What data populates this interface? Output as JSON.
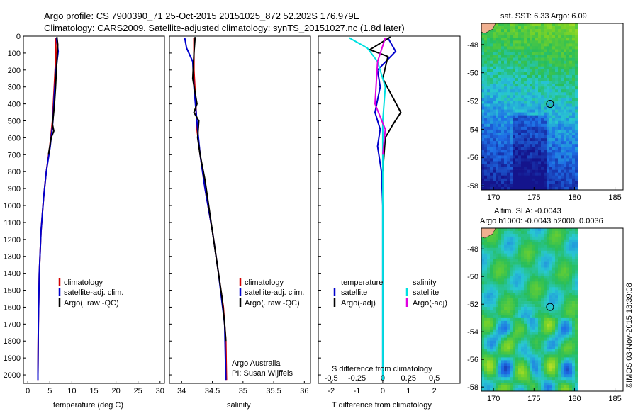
{
  "header": {
    "line1": "Argo profile: CS 7900390_71 25-Oct-2015 20151025_872 52.202S 176.979E",
    "line2": "Climatology: CARS2009. Satellite-adjusted climatology: synTS_20151027.nc (1.8d later)"
  },
  "colors": {
    "climatology": "#d40000",
    "satellite": "#0000cc",
    "argo": "#000000",
    "sat_salinity": "#00e0e0",
    "argo_salinity": "#e000e0"
  },
  "chart_data": [
    {
      "type": "line",
      "name": "temperature-panel",
      "xlabel": "temperature (deg C)",
      "ylabel": "",
      "xlim": [
        -1,
        31
      ],
      "ylim": [
        2050,
        0
      ],
      "xticks": [
        "0",
        "5",
        "10",
        "15",
        "20",
        "25",
        "30"
      ],
      "yticks": [
        "0",
        "100",
        "200",
        "300",
        "400",
        "500",
        "600",
        "700",
        "800",
        "900",
        "1000",
        "1100",
        "1200",
        "1300",
        "1400",
        "1500",
        "1600",
        "1700",
        "1800",
        "1900",
        "2000"
      ],
      "legend": [
        "climatology",
        "satellite-adj. clim.",
        "Argo(..raw -QC)"
      ],
      "series": [
        {
          "name": "climatology",
          "points": [
            [
              6.3,
              10
            ],
            [
              6.4,
              100
            ],
            [
              6.2,
              200
            ],
            [
              5.9,
              350
            ],
            [
              5.6,
              500
            ],
            [
              5.0,
              650
            ],
            [
              4.2,
              800
            ],
            [
              3.6,
              950
            ],
            [
              3.0,
              1150
            ],
            [
              2.6,
              1400
            ],
            [
              2.4,
              1700
            ],
            [
              2.3,
              2000
            ],
            [
              2.3,
              2030
            ]
          ]
        },
        {
          "name": "satellite-adj. clim.",
          "points": [
            [
              6.5,
              10
            ],
            [
              6.9,
              90
            ],
            [
              6.4,
              200
            ],
            [
              6.0,
              350
            ],
            [
              5.7,
              500
            ],
            [
              5.1,
              650
            ],
            [
              4.2,
              800
            ],
            [
              3.6,
              950
            ],
            [
              3.0,
              1150
            ],
            [
              2.6,
              1400
            ],
            [
              2.4,
              1700
            ],
            [
              2.3,
              2000
            ],
            [
              2.3,
              2030
            ]
          ]
        },
        {
          "name": "Argo(..raw -QC)",
          "points": [
            [
              6.6,
              5
            ],
            [
              6.8,
              50
            ],
            [
              6.7,
              100
            ],
            [
              6.5,
              200
            ],
            [
              6.3,
              300
            ],
            [
              6.0,
              420
            ],
            [
              5.6,
              520
            ],
            [
              5.9,
              560
            ],
            [
              5.3,
              600
            ],
            [
              4.7,
              700
            ]
          ]
        }
      ]
    },
    {
      "type": "line",
      "name": "salinity-panel",
      "xlabel": "salinity",
      "xlim": [
        33.8,
        36.1
      ],
      "ylim": [
        2050,
        0
      ],
      "xticks": [
        "34",
        "34.5",
        "35",
        "35.5",
        "36"
      ],
      "legend": [
        "climatology",
        "satellite-adj. clim.",
        "Argo(..raw -QC)"
      ],
      "annotation": [
        "Argo Australia",
        "PI: Susan Wijffels"
      ],
      "series": [
        {
          "name": "climatology",
          "points": [
            [
              34.2,
              10
            ],
            [
              34.2,
              200
            ],
            [
              34.23,
              400
            ],
            [
              34.25,
              550
            ],
            [
              34.3,
              700
            ],
            [
              34.38,
              900
            ],
            [
              34.5,
              1150
            ],
            [
              34.6,
              1400
            ],
            [
              34.68,
              1600
            ],
            [
              34.72,
              1800
            ],
            [
              34.73,
              2030
            ]
          ]
        },
        {
          "name": "satellite-adj. clim.",
          "points": [
            [
              34.05,
              10
            ],
            [
              34.08,
              70
            ],
            [
              34.18,
              150
            ],
            [
              34.2,
              300
            ],
            [
              34.26,
              550
            ],
            [
              34.3,
              700
            ],
            [
              34.38,
              900
            ],
            [
              34.5,
              1150
            ],
            [
              34.6,
              1400
            ],
            [
              34.7,
              1700
            ],
            [
              34.72,
              2030
            ]
          ]
        },
        {
          "name": "Argo(..raw -QC)",
          "points": [
            [
              34.22,
              5
            ],
            [
              34.2,
              100
            ],
            [
              34.18,
              250
            ],
            [
              34.25,
              400
            ],
            [
              34.2,
              450
            ],
            [
              34.28,
              500
            ],
            [
              34.26,
              600
            ],
            [
              34.3,
              700
            ],
            [
              34.38,
              850
            ],
            [
              34.48,
              1100
            ],
            [
              34.58,
              1350
            ],
            [
              34.66,
              1550
            ],
            [
              34.7,
              1700
            ],
            [
              34.72,
              1800
            ]
          ]
        }
      ]
    },
    {
      "type": "line",
      "name": "difference-panel",
      "xlabel": "T difference from climatology",
      "xlabel_top": "S difference from climatology",
      "xlim": [
        -2.5,
        3
      ],
      "ylim": [
        2050,
        0
      ],
      "xticks": [
        "-2",
        "-1",
        "0",
        "1",
        "2"
      ],
      "xticks_top": [
        "-0.5",
        "-0.25",
        "0",
        "0.25",
        "0.5"
      ],
      "legend_left_title": "temperature",
      "legend_right_title": "salinity",
      "legend": [
        "satellite",
        "Argo(-adj)",
        "satellite",
        "Argo(-adj)"
      ],
      "series": [
        {
          "name": "temperature satellite",
          "points": [
            [
              0.2,
              10
            ],
            [
              0.5,
              90
            ],
            [
              -0.2,
              200
            ],
            [
              -0.1,
              300
            ],
            [
              -0.3,
              450
            ],
            [
              -0.1,
              550
            ],
            [
              -0.2,
              650
            ],
            [
              -0.05,
              800
            ],
            [
              0,
              1000
            ],
            [
              0,
              2030
            ]
          ]
        },
        {
          "name": "temperature Argo(-adj)",
          "points": [
            [
              0.3,
              5
            ],
            [
              -0.5,
              80
            ],
            [
              0.2,
              120
            ],
            [
              0,
              250
            ],
            [
              0.7,
              450
            ],
            [
              0.4,
              520
            ],
            [
              0.1,
              600
            ],
            [
              0,
              800
            ]
          ]
        },
        {
          "name": "salinity satellite",
          "points": [
            [
              -1.3,
              10
            ],
            [
              -0.6,
              70
            ],
            [
              -0.2,
              150
            ],
            [
              0.1,
              300
            ],
            [
              0,
              500
            ],
            [
              0,
              1000
            ],
            [
              0,
              2030
            ]
          ]
        },
        {
          "name": "salinity Argo(-adj)",
          "points": [
            [
              0.1,
              10
            ],
            [
              -0.2,
              150
            ],
            [
              -0.3,
              400
            ],
            [
              0.1,
              550
            ],
            [
              0,
              700
            ]
          ]
        }
      ]
    },
    {
      "type": "heatmap",
      "name": "sst-map",
      "title": "sat. SST: 6.33 Argo: 6.09",
      "xlim": [
        168.5,
        186
      ],
      "ylim": [
        -58.3,
        -46.5
      ],
      "xticks": [
        "170",
        "175",
        "180",
        "185"
      ],
      "yticks": [
        "-48",
        "-50",
        "-52",
        "-54",
        "-56",
        "-58"
      ],
      "marker": [
        176.979,
        -52.202
      ]
    },
    {
      "type": "heatmap",
      "name": "sla-map",
      "title_line1": "Altim. SLA: -0.0043",
      "title_line2": "Argo h1000: -0.0043 h2000: 0.0036",
      "xlim": [
        168.5,
        186
      ],
      "ylim": [
        -58.3,
        -46.5
      ],
      "xticks": [
        "170",
        "175",
        "180",
        "185"
      ],
      "yticks": [
        "-48",
        "-50",
        "-52",
        "-54",
        "-56",
        "-58"
      ],
      "marker": [
        176.979,
        -52.202
      ]
    }
  ],
  "footer": {
    "stamp": "©IMOS 03-Nov-2015 13:39:08"
  }
}
